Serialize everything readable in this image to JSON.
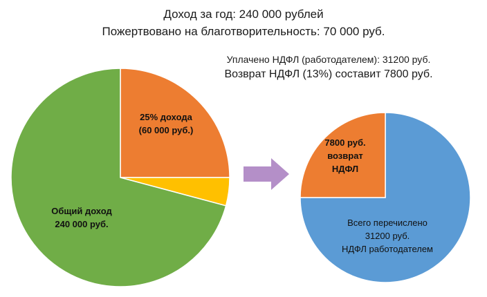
{
  "header": {
    "line1": "Доход  за год: 240 000 рублей",
    "line2": "Пожертвовано на благотворительность: 70 000 руб."
  },
  "notes": {
    "paid": "Уплачено НДФЛ (работодателем): 31200 руб.",
    "refund": "Возврат НДФЛ (13%) составит 7800 руб."
  },
  "colors": {
    "green": "#70ad47",
    "orange": "#ed7d31",
    "yellow": "#ffc000",
    "blue": "#5b9bd5",
    "arrow": "#b48fc8"
  },
  "chart_data": [
    {
      "type": "pie",
      "title": "",
      "slices": [
        {
          "label": [
            "25% дохода",
            "(60 000 руб.)"
          ],
          "value": 60000,
          "color": "#ed7d31"
        },
        {
          "label": [],
          "value": 10000,
          "color": "#ffc000"
        },
        {
          "label": [
            "Общий доход",
            "240 000 руб."
          ],
          "value": 170000,
          "color": "#70ad47"
        }
      ]
    },
    {
      "type": "pie",
      "title": "",
      "slices": [
        {
          "label": [
            "Всего перечислено",
            "31200 руб.",
            "НДФЛ работодателем"
          ],
          "value": 23400,
          "color": "#5b9bd5"
        },
        {
          "label": [
            "7800 руб.",
            "возврат",
            "НДФЛ"
          ],
          "value": 7800,
          "color": "#ed7d31"
        }
      ]
    }
  ]
}
